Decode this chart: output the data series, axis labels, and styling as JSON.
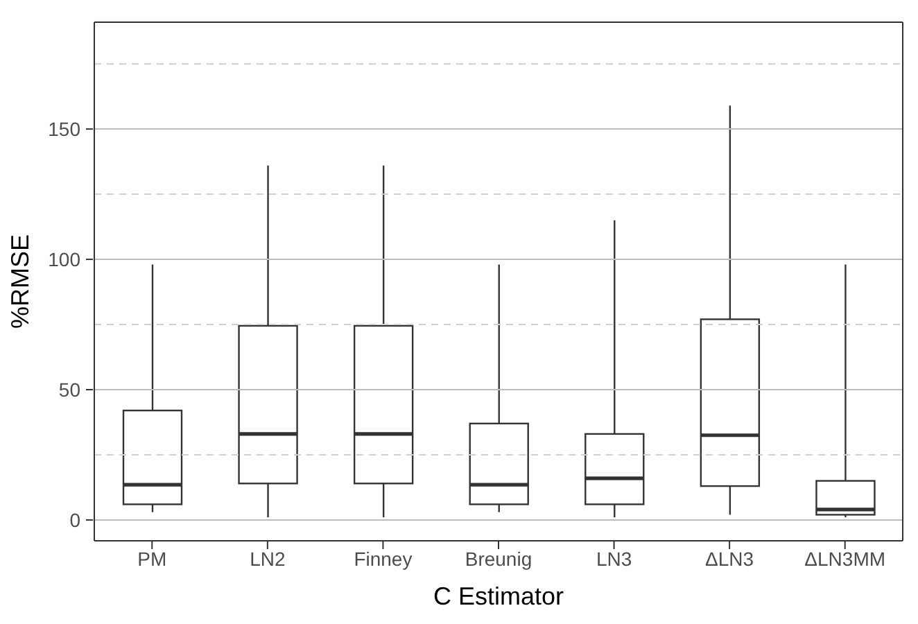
{
  "chart_data": {
    "type": "box",
    "xlabel": "C Estimator",
    "ylabel": "%RMSE",
    "categories": [
      "PM",
      "LN2",
      "Finney",
      "Breunig",
      "LN3",
      "ΔLN3",
      "ΔLN3MM"
    ],
    "boxes": [
      {
        "low": 3,
        "q1": 6,
        "median": 13.5,
        "q3": 42,
        "high": 98
      },
      {
        "low": 1,
        "q1": 14,
        "median": 33,
        "q3": 74.5,
        "high": 136
      },
      {
        "low": 1,
        "q1": 14,
        "median": 33,
        "q3": 74.5,
        "high": 136
      },
      {
        "low": 3,
        "q1": 6,
        "median": 13.5,
        "q3": 37,
        "high": 98
      },
      {
        "low": 1,
        "q1": 6,
        "median": 16,
        "q3": 33,
        "high": 115
      },
      {
        "low": 2,
        "q1": 13,
        "median": 32.5,
        "q3": 77,
        "high": 159
      },
      {
        "low": 1,
        "q1": 2,
        "median": 4,
        "q3": 15,
        "high": 98
      }
    ],
    "color": "#333333",
    "ylim": [
      -8,
      191
    ],
    "yticks": [
      0,
      {
        "value": 25,
        "label": null
      },
      50,
      {
        "value": 75,
        "label": null
      },
      100,
      {
        "value": 125,
        "label": null
      },
      150,
      {
        "value": 175,
        "label": null
      }
    ],
    "grid": "y",
    "legend": false
  }
}
